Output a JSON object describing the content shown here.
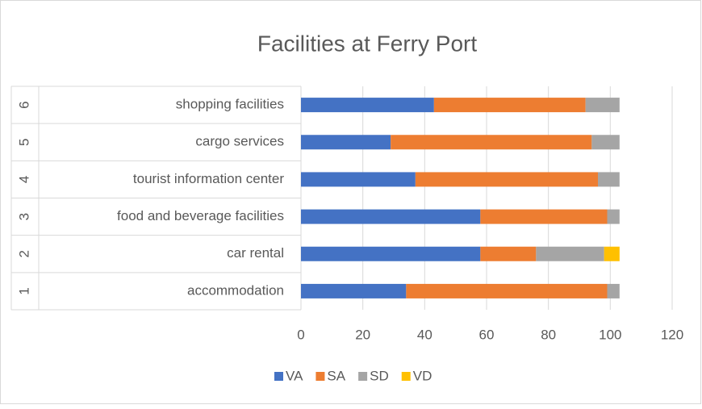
{
  "chart_data": {
    "type": "stacked-bar-horizontal",
    "title": "Facilities at Ferry Port",
    "category_numbers": [
      "1",
      "2",
      "3",
      "4",
      "5",
      "6"
    ],
    "categories": [
      "accommodation",
      "car rental",
      "food and beverage facilities",
      "tourist information center",
      "cargo services",
      "shopping facilities"
    ],
    "series": [
      {
        "name": "VA",
        "color": "#4472c4",
        "values": [
          34,
          58,
          58,
          37,
          29,
          43
        ]
      },
      {
        "name": "SA",
        "color": "#ed7d31",
        "values": [
          65,
          18,
          41,
          59,
          65,
          49
        ]
      },
      {
        "name": "SD",
        "color": "#a5a5a5",
        "values": [
          4,
          22,
          4,
          7,
          9,
          11
        ]
      },
      {
        "name": "VD",
        "color": "#ffc000",
        "values": [
          null,
          5,
          null,
          null,
          null,
          null
        ]
      }
    ],
    "xlim": [
      0,
      120
    ],
    "xticks": [
      0,
      20,
      40,
      60,
      80,
      100,
      120
    ],
    "grid": true,
    "legend": "bottom"
  }
}
